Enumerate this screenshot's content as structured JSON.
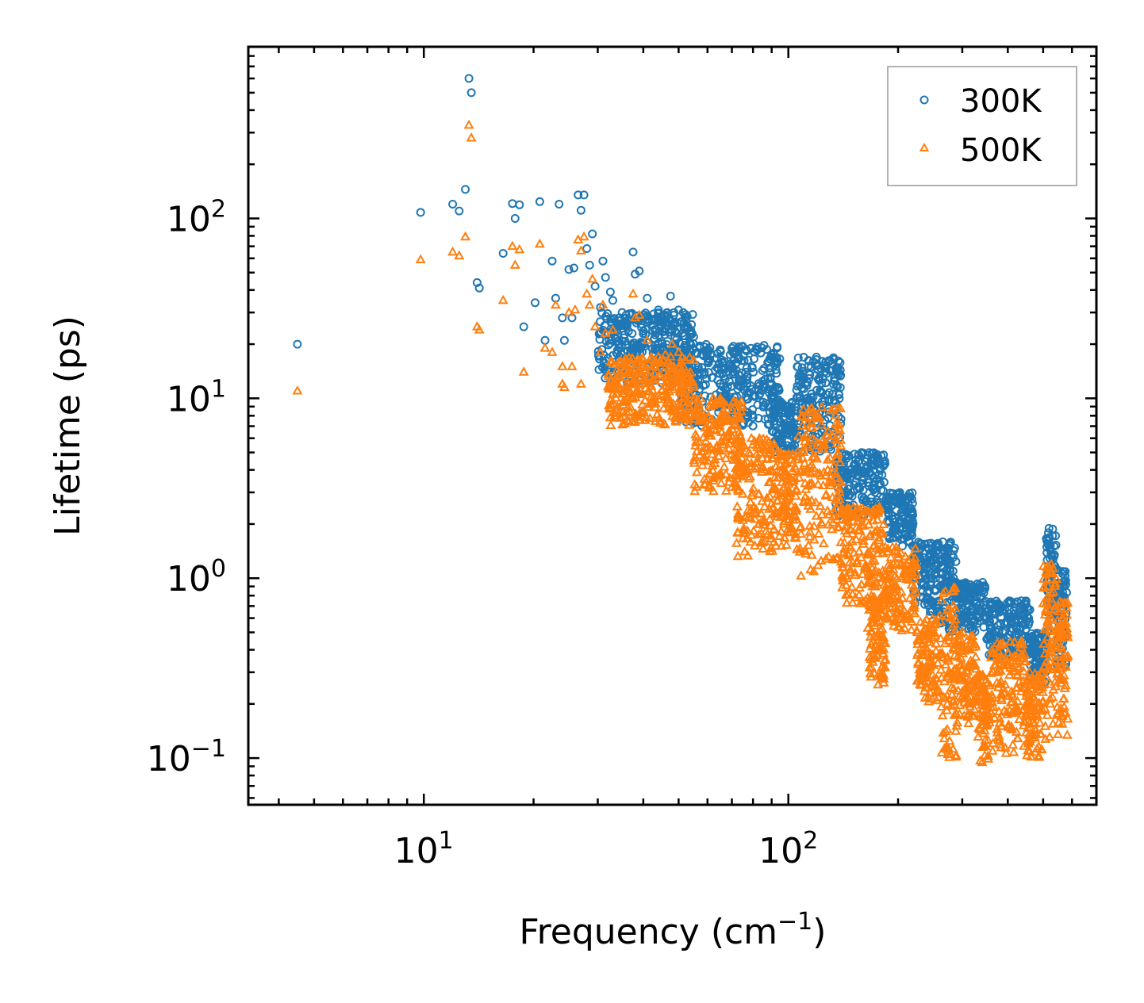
{
  "chart_data": {
    "type": "scatter",
    "xscale": "log",
    "yscale": "log",
    "xlabel": "Frequency (cm",
    "xlabel_sup": "−1",
    "xlabel_suffix": ")",
    "ylabel": "Lifetime (ps)",
    "xlim": [
      3.3,
      700
    ],
    "ylim": [
      0.055,
      900
    ],
    "x_ticks": [
      {
        "value": 10,
        "base": "10",
        "exp": "1"
      },
      {
        "value": 100,
        "base": "10",
        "exp": "2"
      }
    ],
    "y_ticks": [
      {
        "value": 0.1,
        "base": "10",
        "exp": "−1"
      },
      {
        "value": 1,
        "base": "10",
        "exp": "0"
      },
      {
        "value": 10,
        "base": "10",
        "exp": "1"
      },
      {
        "value": 100,
        "base": "10",
        "exp": "2"
      }
    ],
    "legend": {
      "position": "top-right"
    },
    "series": [
      {
        "name": "300K",
        "marker": "circle",
        "color": "#1f77b4",
        "points": [
          [
            4.5,
            20
          ],
          [
            9.8,
            108
          ],
          [
            12.0,
            120
          ],
          [
            12.5,
            110
          ],
          [
            13.0,
            145
          ],
          [
            13.3,
            600
          ],
          [
            13.5,
            500
          ],
          [
            14.0,
            44
          ],
          [
            14.2,
            41
          ],
          [
            16.5,
            64
          ],
          [
            17.5,
            121
          ],
          [
            17.8,
            100
          ],
          [
            18.3,
            119
          ],
          [
            18.8,
            25
          ],
          [
            20.2,
            34
          ],
          [
            20.8,
            124
          ],
          [
            21.5,
            21
          ],
          [
            22.5,
            58
          ],
          [
            23.0,
            36
          ],
          [
            23.5,
            120
          ],
          [
            24.0,
            28
          ],
          [
            24.3,
            21
          ],
          [
            25.0,
            52
          ],
          [
            25.5,
            28
          ],
          [
            25.8,
            53
          ],
          [
            26.5,
            135
          ],
          [
            27.0,
            111
          ],
          [
            27.5,
            135
          ],
          [
            28.0,
            68
          ],
          [
            28.5,
            55
          ],
          [
            29.0,
            82
          ],
          [
            29.5,
            42
          ],
          [
            30.5,
            32
          ],
          [
            31.0,
            58
          ],
          [
            31.5,
            47
          ],
          [
            32.5,
            39
          ],
          [
            33.0,
            35
          ],
          [
            34.0,
            22
          ],
          [
            35.0,
            30
          ],
          [
            36.0,
            25
          ],
          [
            37.5,
            65
          ],
          [
            38.0,
            49
          ],
          [
            39.0,
            51
          ],
          [
            40.0,
            29
          ],
          [
            41.0,
            36
          ],
          [
            43.0,
            24
          ],
          [
            44.0,
            31
          ],
          [
            46.5,
            30
          ],
          [
            47.5,
            37
          ],
          [
            48.5,
            29
          ],
          [
            50.0,
            31
          ],
          [
            52.0,
            25
          ],
          [
            55.0,
            22
          ],
          [
            60.0,
            18
          ],
          [
            70.0,
            19
          ],
          [
            82.0,
            18.5
          ]
        ],
        "bands": [
          {
            "x0": 30,
            "x1": 55,
            "lo": 12,
            "hi": 30
          },
          {
            "x0": 50,
            "x1": 95,
            "lo": 7,
            "hi": 20
          },
          {
            "x0": 90,
            "x1": 105,
            "lo": 5,
            "hi": 10
          },
          {
            "x0": 105,
            "x1": 140,
            "lo": 5,
            "hi": 17
          },
          {
            "x0": 135,
            "x1": 185,
            "lo": 2.2,
            "hi": 5
          },
          {
            "x0": 185,
            "x1": 220,
            "lo": 1.5,
            "hi": 3
          },
          {
            "x0": 220,
            "x1": 260,
            "lo": 0.6,
            "hi": 1.6
          },
          {
            "x0": 260,
            "x1": 290,
            "lo": 0.5,
            "hi": 1.6
          },
          {
            "x0": 290,
            "x1": 350,
            "lo": 0.5,
            "hi": 0.95
          },
          {
            "x0": 350,
            "x1": 460,
            "lo": 0.35,
            "hi": 0.75
          },
          {
            "x0": 460,
            "x1": 510,
            "lo": 0.25,
            "hi": 0.5
          },
          {
            "x0": 510,
            "x1": 545,
            "lo": 0.5,
            "hi": 1.9
          },
          {
            "x0": 545,
            "x1": 580,
            "lo": 0.3,
            "hi": 1.15
          }
        ]
      },
      {
        "name": "500K",
        "marker": "triangle",
        "color": "#ff7f0e",
        "points": [
          [
            4.5,
            11
          ],
          [
            9.8,
            59
          ],
          [
            12.0,
            65
          ],
          [
            12.5,
            62
          ],
          [
            13.0,
            79
          ],
          [
            13.3,
            330
          ],
          [
            13.5,
            280
          ],
          [
            14.0,
            25
          ],
          [
            14.2,
            24
          ],
          [
            16.5,
            35
          ],
          [
            17.5,
            70
          ],
          [
            17.8,
            55
          ],
          [
            18.3,
            67
          ],
          [
            18.8,
            14
          ],
          [
            20.8,
            72
          ],
          [
            21.5,
            19
          ],
          [
            22.5,
            18
          ],
          [
            23.0,
            33
          ],
          [
            24.0,
            15
          ],
          [
            24.3,
            11.5
          ],
          [
            25.0,
            30
          ],
          [
            25.5,
            15
          ],
          [
            26.0,
            31
          ],
          [
            26.5,
            76
          ],
          [
            27.0,
            66
          ],
          [
            27.5,
            79
          ],
          [
            28.0,
            38
          ],
          [
            28.5,
            33
          ],
          [
            29.0,
            46
          ],
          [
            29.5,
            25
          ],
          [
            30.5,
            18
          ],
          [
            31.0,
            33
          ],
          [
            31.5,
            23
          ],
          [
            32.5,
            12.5
          ],
          [
            33.0,
            24
          ],
          [
            34.0,
            12
          ],
          [
            35.0,
            15
          ],
          [
            37.5,
            38
          ],
          [
            38.0,
            28
          ],
          [
            39.0,
            29
          ],
          [
            41.0,
            21
          ],
          [
            43.0,
            16
          ],
          [
            44.0,
            17
          ],
          [
            46.0,
            17.5
          ],
          [
            48.0,
            20
          ],
          [
            50.0,
            18
          ],
          [
            24.0,
            12
          ],
          [
            27.0,
            12
          ]
        ],
        "bands": [
          {
            "x0": 32,
            "x1": 55,
            "lo": 7,
            "hi": 17
          },
          {
            "x0": 55,
            "x1": 75,
            "lo": 3,
            "hi": 10
          },
          {
            "x0": 72,
            "x1": 95,
            "lo": 1.3,
            "hi": 6
          },
          {
            "x0": 95,
            "x1": 105,
            "lo": 1.5,
            "hi": 5
          },
          {
            "x0": 105,
            "x1": 140,
            "lo": 1.0,
            "hi": 9
          },
          {
            "x0": 140,
            "x1": 185,
            "lo": 0.7,
            "hi": 2.5
          },
          {
            "x0": 165,
            "x1": 185,
            "lo": 0.25,
            "hi": 0.8
          },
          {
            "x0": 185,
            "x1": 225,
            "lo": 0.5,
            "hi": 1.5
          },
          {
            "x0": 225,
            "x1": 260,
            "lo": 0.2,
            "hi": 0.6
          },
          {
            "x0": 260,
            "x1": 290,
            "lo": 0.09,
            "hi": 0.9
          },
          {
            "x0": 290,
            "x1": 330,
            "lo": 0.15,
            "hi": 0.5
          },
          {
            "x0": 330,
            "x1": 360,
            "lo": 0.09,
            "hi": 0.3
          },
          {
            "x0": 360,
            "x1": 450,
            "lo": 0.1,
            "hi": 0.45
          },
          {
            "x0": 450,
            "x1": 500,
            "lo": 0.1,
            "hi": 0.3
          },
          {
            "x0": 500,
            "x1": 545,
            "lo": 0.12,
            "hi": 1.2
          },
          {
            "x0": 545,
            "x1": 585,
            "lo": 0.12,
            "hi": 0.75
          }
        ]
      }
    ]
  }
}
